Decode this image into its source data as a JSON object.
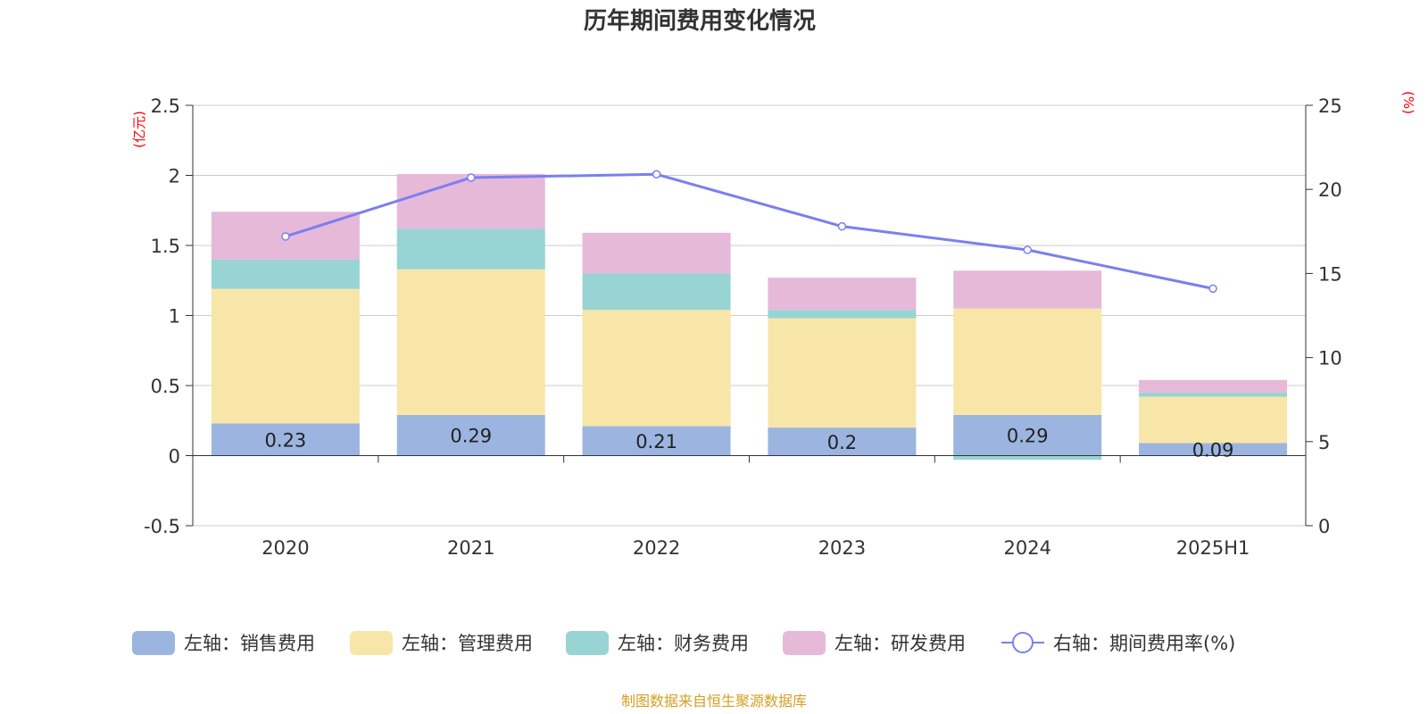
{
  "chart_data": {
    "type": "bar",
    "title": "历年期间费用变化情况",
    "source": "制图数据来自恒生聚源数据库",
    "categories": [
      "2020",
      "2021",
      "2022",
      "2023",
      "2024",
      "2025H1"
    ],
    "left_axis": {
      "unit": "(亿元)",
      "ylim": [
        -0.5,
        2.5
      ],
      "ticks": [
        "-0.5",
        "0",
        "0.5",
        "1",
        "1.5",
        "2",
        "2.5"
      ],
      "tick_values": [
        -0.5,
        0,
        0.5,
        1,
        1.5,
        2,
        2.5
      ]
    },
    "right_axis": {
      "unit": "(%)",
      "ylim": [
        0,
        25
      ],
      "ticks": [
        "0",
        "5",
        "10",
        "15",
        "20",
        "25"
      ],
      "tick_values": [
        0,
        5,
        10,
        15,
        20,
        25
      ]
    },
    "series": [
      {
        "name": "左轴：销售费用",
        "type": "bar",
        "axis": "left",
        "color": "#9bb5e0",
        "values": [
          0.23,
          0.29,
          0.21,
          0.2,
          0.29,
          0.09
        ],
        "labels": [
          "0.23",
          "0.29",
          "0.21",
          "0.2",
          "0.29",
          "0.09"
        ]
      },
      {
        "name": "左轴：管理费用",
        "type": "bar",
        "axis": "left",
        "color": "#f8e6a8",
        "values": [
          0.96,
          1.04,
          0.83,
          0.78,
          0.76,
          0.33
        ]
      },
      {
        "name": "左轴：财务费用",
        "type": "bar",
        "axis": "left",
        "color": "#98d4d4",
        "values": [
          0.21,
          0.29,
          0.26,
          0.06,
          -0.03,
          0.03
        ]
      },
      {
        "name": "左轴：研发费用",
        "type": "bar",
        "axis": "left",
        "color": "#e6b9d9",
        "values": [
          0.34,
          0.39,
          0.29,
          0.23,
          0.27,
          0.09
        ]
      },
      {
        "name": "右轴：期间费用率(%)",
        "type": "line",
        "axis": "right",
        "color": "#7b7ff0",
        "values": [
          17.2,
          20.7,
          20.9,
          17.8,
          16.4,
          14.1
        ]
      }
    ],
    "grid": true,
    "legend_position": "bottom"
  }
}
